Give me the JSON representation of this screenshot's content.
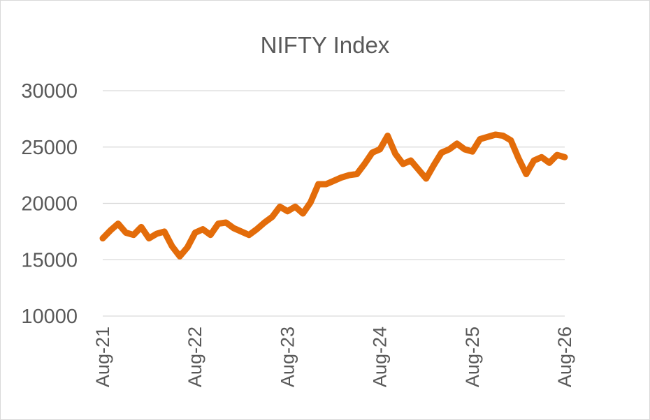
{
  "chart_data": {
    "type": "line",
    "title": "NIFTY Index",
    "xlabel": "",
    "ylabel": "",
    "ylim": [
      10000,
      30000
    ],
    "yticks": [
      "10000",
      "15000",
      "20000",
      "25000",
      "30000"
    ],
    "xticks": [
      "Aug-21",
      "Aug-22",
      "Aug-23",
      "Aug-24",
      "Aug-25",
      "Aug-26"
    ],
    "xlim": [
      "Aug-21",
      "Aug-26"
    ],
    "grid": true,
    "legend": "none",
    "series_color": "#e36c0a",
    "series": [
      {
        "x": [
          "Aug-21",
          "Sep-21",
          "Oct-21",
          "Nov-21",
          "Dec-21",
          "Jan-22",
          "Feb-22",
          "Mar-22",
          "Apr-22",
          "May-22",
          "Jun-22",
          "Jul-22",
          "Aug-22",
          "Sep-22",
          "Oct-22",
          "Nov-22",
          "Dec-22",
          "Jan-23",
          "Feb-23",
          "Mar-23",
          "Apr-23",
          "May-23",
          "Jun-23",
          "Jul-23",
          "Aug-23",
          "Sep-23",
          "Oct-23",
          "Nov-23",
          "Dec-23",
          "Jan-24",
          "Feb-24",
          "Mar-24",
          "Apr-24",
          "May-24",
          "Jun-24",
          "Jul-24",
          "Aug-24",
          "Sep-24",
          "Oct-24",
          "Nov-24",
          "Dec-24",
          "Jan-25",
          "Feb-25",
          "Mar-25",
          "Apr-25",
          "May-25",
          "Jun-25",
          "Jul-25",
          "Aug-25",
          "Sep-25",
          "Oct-25",
          "Nov-25",
          "Dec-25",
          "Jan-26",
          "Feb-26",
          "Mar-26",
          "Apr-26",
          "May-26",
          "Jun-26",
          "Jul-26",
          "Aug-26"
        ],
        "values": [
          16900,
          17600,
          18200,
          17400,
          17200,
          17900,
          16900,
          17300,
          17500,
          16200,
          15300,
          16100,
          17400,
          17700,
          17200,
          18200,
          18300,
          17800,
          17500,
          17200,
          17700,
          18300,
          18800,
          19700,
          19300,
          19700,
          19100,
          20100,
          21700,
          21700,
          22000,
          22300,
          22500,
          22600,
          23500,
          24500,
          24800,
          26000,
          24400,
          23500,
          23800,
          23000,
          22200,
          23400,
          24500,
          24800,
          25300,
          24800,
          24600,
          25700,
          25900,
          26100,
          26000,
          25600,
          24000,
          22600,
          23800,
          24100,
          23600,
          24300,
          24100
        ]
      }
    ]
  }
}
